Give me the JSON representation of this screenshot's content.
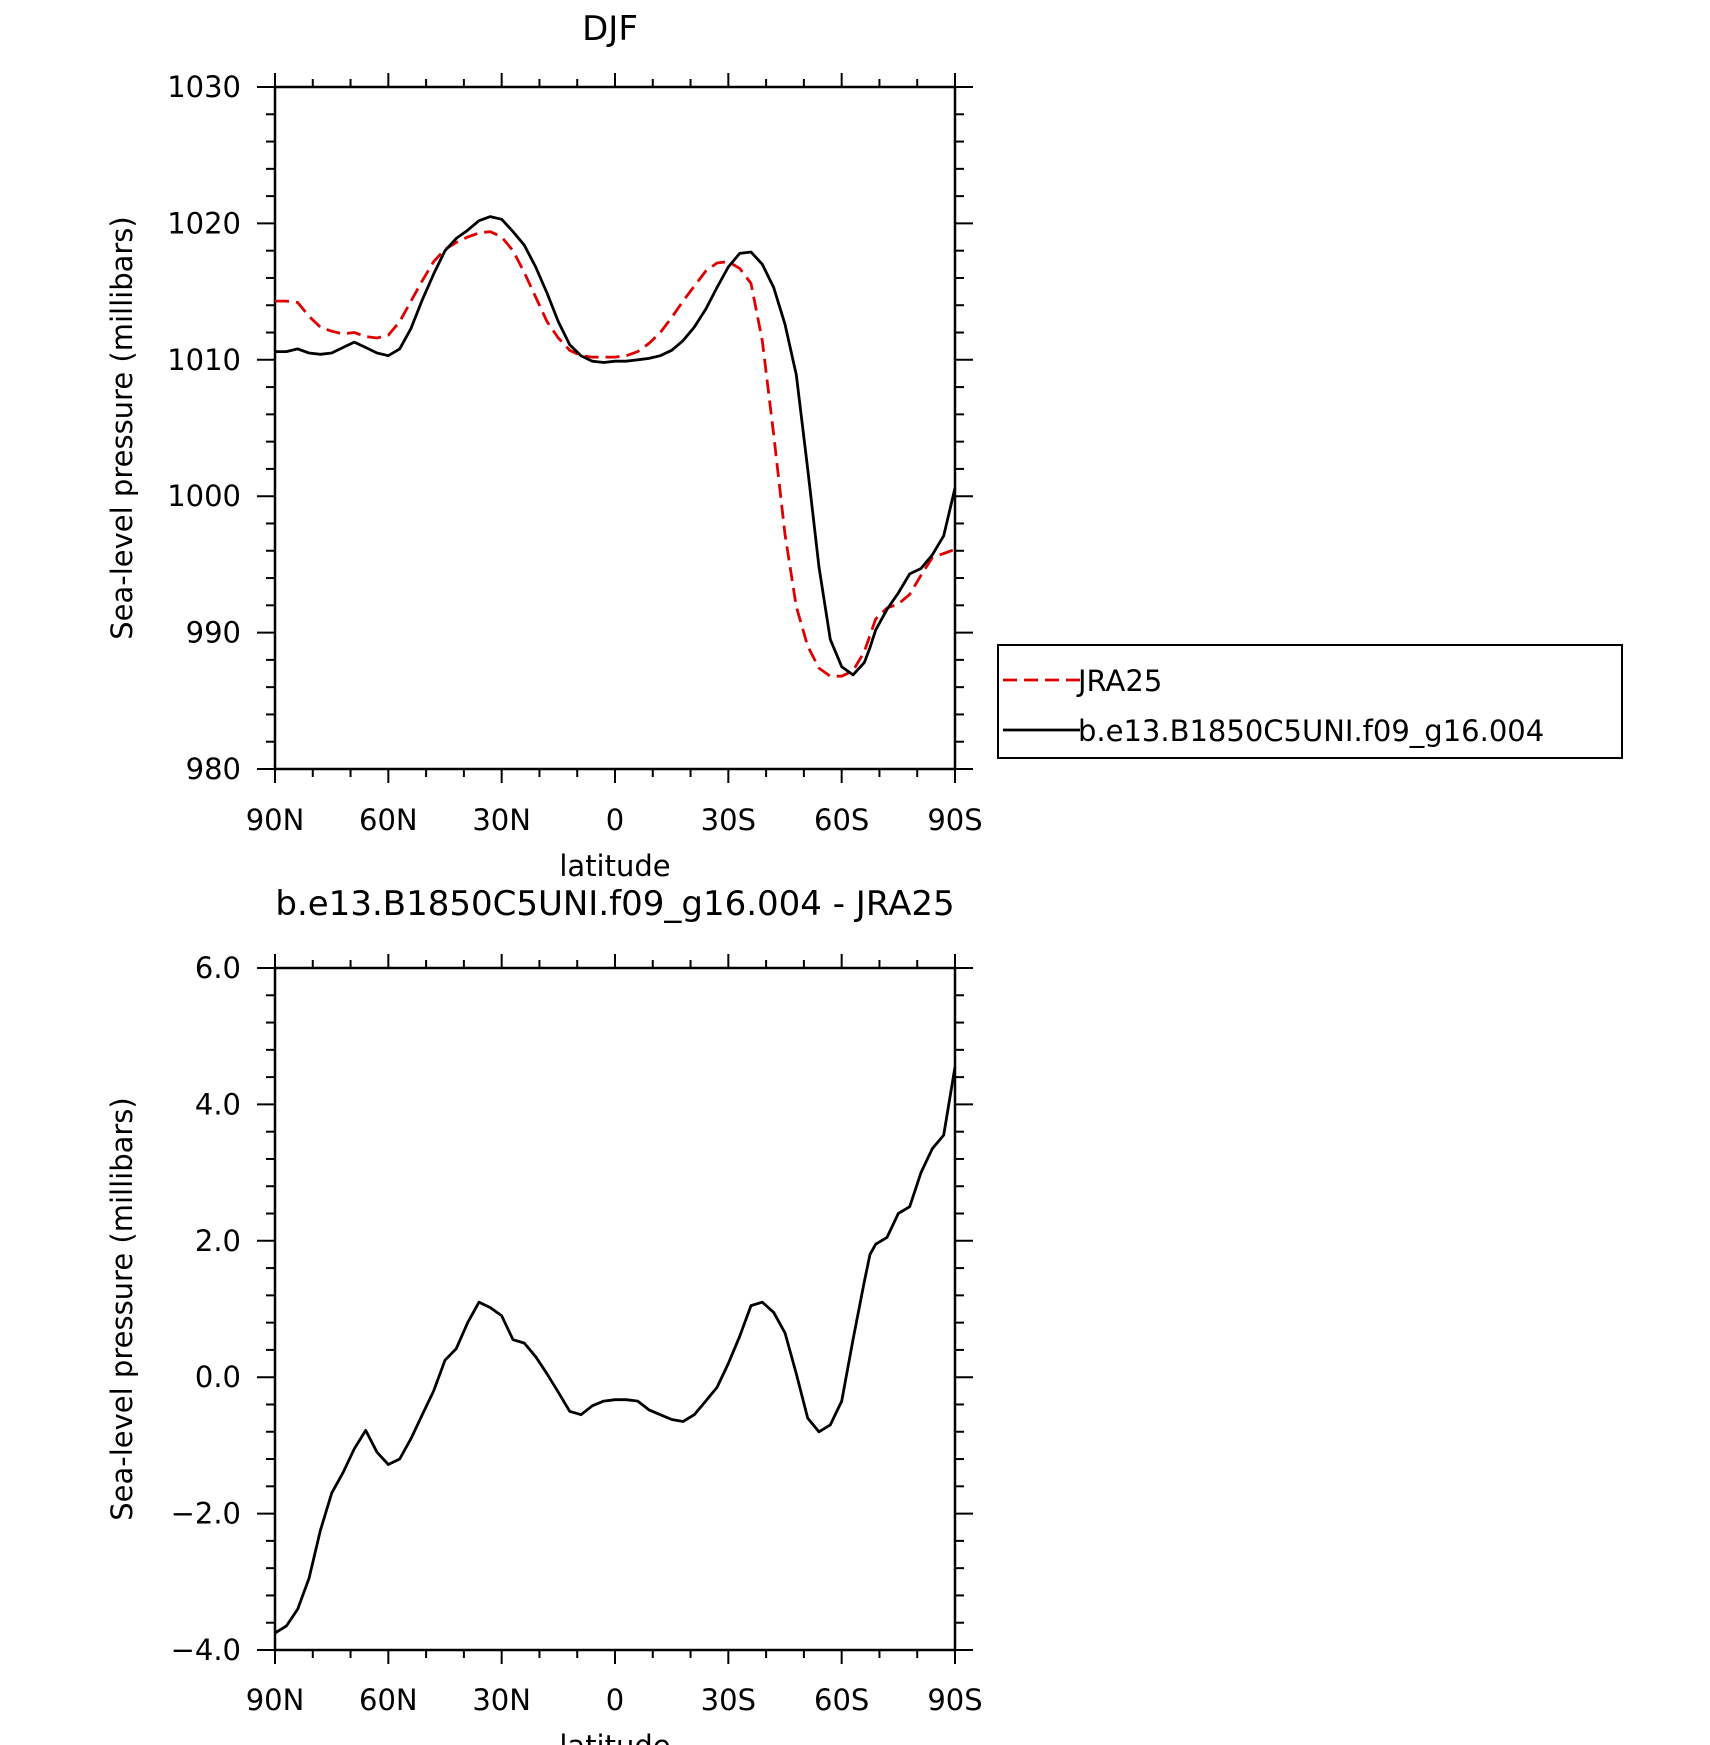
{
  "chart_data": [
    {
      "type": "line",
      "title": "DJF",
      "xlabel": "latitude",
      "ylabel": "Sea-level pressure (millibars)",
      "xlim": [
        90,
        -90
      ],
      "ylim": [
        980,
        1030
      ],
      "x_tick_labels": [
        "90N",
        "60N",
        "30N",
        "0",
        "30S",
        "60S",
        "90S"
      ],
      "y_tick_labels": [
        "980",
        "990",
        "1000",
        "1010",
        "1020",
        "1030"
      ],
      "legend": {
        "placement": "right",
        "entries": [
          "JRA25",
          "b.e13.B1850C5UNI.f09_g16.004"
        ]
      },
      "series": [
        {
          "name": "JRA25",
          "color": "#e00000",
          "dash": true,
          "x": [
            90,
            87,
            84,
            81,
            78,
            75,
            72,
            69,
            66,
            63,
            60,
            57,
            54,
            51,
            48,
            45,
            42,
            39,
            36,
            33,
            30,
            27,
            24,
            21,
            18,
            15,
            12,
            9,
            6,
            3,
            0,
            -3,
            -6,
            -9,
            -12,
            -15,
            -18,
            -21,
            -24,
            -27,
            -30,
            -33,
            -36,
            -39,
            -42,
            -45,
            -48,
            -51,
            -54,
            -57,
            -60,
            -63,
            -66,
            -67.5,
            -69,
            -72,
            -75,
            -78,
            -81,
            -84,
            -87,
            -90
          ],
          "y": [
            1014.3,
            1014.3,
            1014.2,
            1013.2,
            1012.4,
            1012.1,
            1011.9,
            1012.0,
            1011.7,
            1011.6,
            1011.8,
            1012.8,
            1014.3,
            1015.8,
            1017.2,
            1018.1,
            1018.6,
            1019.0,
            1019.3,
            1019.4,
            1019.0,
            1018.0,
            1016.4,
            1014.6,
            1012.8,
            1011.6,
            1010.7,
            1010.3,
            1010.2,
            1010.2,
            1010.2,
            1010.3,
            1010.6,
            1011.2,
            1012.0,
            1013.1,
            1014.3,
            1015.4,
            1016.5,
            1017.1,
            1017.2,
            1016.7,
            1015.6,
            1011.4,
            1004.5,
            997.2,
            991.9,
            989.0,
            987.4,
            986.8,
            986.8,
            987.2,
            988.6,
            989.8,
            991.0,
            991.8,
            992.1,
            992.8,
            994.2,
            995.5,
            995.8,
            996.1
          ]
        },
        {
          "name": "b.e13.B1850C5UNI.f09_g16.004",
          "color": "#000000",
          "dash": false,
          "x": [
            90,
            87,
            84,
            81,
            78,
            75,
            72,
            69,
            66,
            63,
            60,
            57,
            54,
            51,
            48,
            45,
            42,
            39,
            36,
            33,
            30,
            27,
            24,
            21,
            18,
            15,
            12,
            9,
            6,
            3,
            0,
            -3,
            -6,
            -9,
            -12,
            -15,
            -18,
            -21,
            -24,
            -27,
            -30,
            -33,
            -36,
            -39,
            -42,
            -45,
            -48,
            -51,
            -54,
            -57,
            -60,
            -63,
            -66,
            -67.5,
            -69,
            -72,
            -75,
            -78,
            -81,
            -84,
            -87,
            -90
          ],
          "y": [
            1010.6,
            1010.6,
            1010.8,
            1010.5,
            1010.4,
            1010.5,
            1010.9,
            1011.3,
            1010.9,
            1010.5,
            1010.3,
            1010.8,
            1012.3,
            1014.4,
            1016.3,
            1018.0,
            1018.9,
            1019.5,
            1020.2,
            1020.5,
            1020.3,
            1019.4,
            1018.4,
            1016.8,
            1014.9,
            1012.8,
            1011.1,
            1010.3,
            1009.9,
            1009.8,
            1009.9,
            1009.9,
            1010.0,
            1010.1,
            1010.3,
            1010.7,
            1011.4,
            1012.4,
            1013.7,
            1015.3,
            1016.8,
            1017.8,
            1017.9,
            1017.0,
            1015.3,
            1012.6,
            1008.9,
            1002.0,
            994.8,
            989.5,
            987.5,
            986.9,
            987.8,
            988.9,
            990.2,
            991.7,
            992.9,
            994.3,
            994.7,
            995.7,
            997.1,
            1000.6
          ]
        }
      ]
    },
    {
      "type": "line",
      "title": "b.e13.B1850C5UNI.f09_g16.004 - JRA25",
      "xlabel": "latitude",
      "ylabel": "Sea-level pressure (millibars)",
      "xlim": [
        90,
        -90
      ],
      "ylim": [
        -4.0,
        6.0
      ],
      "x_tick_labels": [
        "90N",
        "60N",
        "30N",
        "0",
        "30S",
        "60S",
        "90S"
      ],
      "y_tick_labels": [
        "-4.0",
        "-2.0",
        "0.0",
        "2.0",
        "4.0",
        "6.0"
      ],
      "series": [
        {
          "color": "#000000",
          "dash": false,
          "x": [
            90,
            87,
            84,
            81,
            78,
            75,
            72,
            69,
            66,
            63,
            60,
            57,
            54,
            51,
            48,
            45,
            42,
            39,
            36,
            33,
            30,
            27,
            24,
            21,
            18,
            15,
            12,
            9,
            6,
            3,
            0,
            -3,
            -6,
            -9,
            -12,
            -15,
            -18,
            -21,
            -24,
            -27,
            -30,
            -33,
            -36,
            -39,
            -42,
            -45,
            -48,
            -51,
            -54,
            -57,
            -60,
            -63,
            -66,
            -67.5,
            -69,
            -72,
            -75,
            -78,
            -81,
            -84,
            -87,
            -90
          ],
          "y": [
            -3.75,
            -3.65,
            -3.4,
            -2.95,
            -2.25,
            -1.7,
            -1.4,
            -1.05,
            -0.78,
            -1.1,
            -1.28,
            -1.2,
            -0.9,
            -0.55,
            -0.2,
            0.25,
            0.42,
            0.8,
            1.1,
            1.02,
            0.9,
            0.55,
            0.5,
            0.3,
            0.05,
            -0.22,
            -0.5,
            -0.55,
            -0.42,
            -0.35,
            -0.33,
            -0.33,
            -0.35,
            -0.48,
            -0.55,
            -0.62,
            -0.65,
            -0.55,
            -0.35,
            -0.15,
            0.2,
            0.6,
            1.05,
            1.1,
            0.95,
            0.65,
            0.05,
            -0.6,
            -0.8,
            -0.7,
            -0.35,
            0.55,
            1.4,
            1.8,
            1.95,
            2.05,
            2.4,
            2.5,
            3.0,
            3.35,
            3.55,
            4.55
          ]
        }
      ]
    }
  ]
}
